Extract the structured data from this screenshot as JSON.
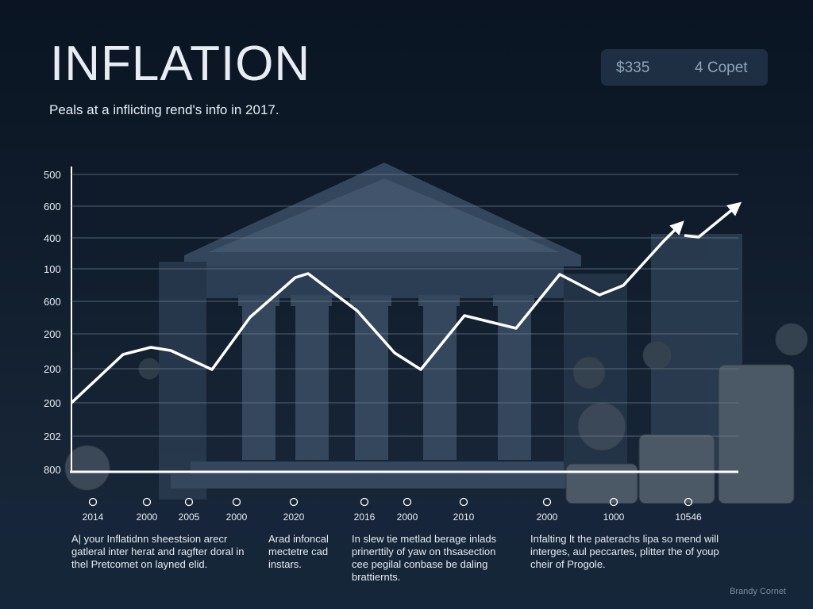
{
  "header": {
    "title": "INFLATION",
    "subtitle": "Peals at a inflicting rend's info in 2017."
  },
  "badge": {
    "amount": "$335",
    "label": "4 Copet"
  },
  "axis": {
    "y_labels": [
      "500",
      "600",
      "400",
      "100",
      "600",
      "200",
      "200",
      "200",
      "202",
      "800"
    ],
    "x_labels": [
      "2014",
      "2000",
      "2005",
      "2000",
      "2020",
      "2016",
      "2000",
      "2010",
      "2000",
      "1000",
      "10546"
    ]
  },
  "captions": [
    "A| your Inflatidnn sheestsion arecr gatleral inter herat and ragfter doral in thel Pretcomet on layned elid.",
    "Arad infoncal mectetre cad instars.",
    "In slew tie metlad berage inlads prinerttily of yaw on thsasection cee pegilal conbase be daling brattiernts.",
    "Infalting lt the paterachs lipa so mend will interges, aul peccartes, plitter the of youp cheir of Progole."
  ],
  "footer": "Brandy Cornet"
}
